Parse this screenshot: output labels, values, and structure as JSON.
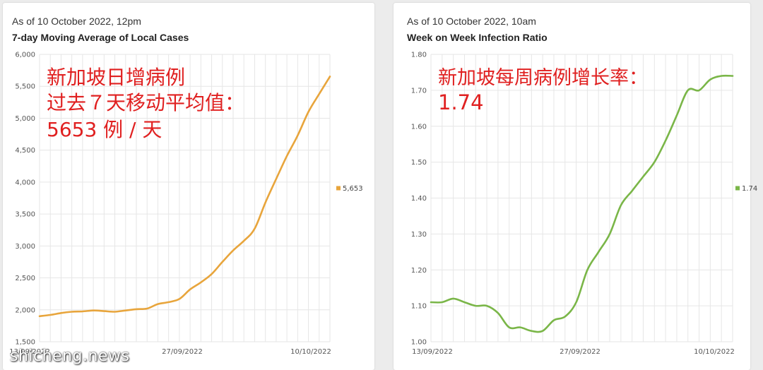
{
  "watermark": "shicheng.news",
  "chart_data": [
    {
      "type": "line",
      "subtitle": "As of 10 October 2022, 12pm",
      "title": "7-day Moving Average of Local Cases",
      "color": "#e8a53c",
      "ylim": [
        1500,
        6000
      ],
      "yticks": [
        "1,500",
        "2,000",
        "2,500",
        "3,000",
        "3,500",
        "4,000",
        "4,500",
        "5,000",
        "5,500",
        "6,000"
      ],
      "xtick_labels": [
        "13/09/2022",
        "27/09/2022",
        "10/10/2022"
      ],
      "legend": "5,653",
      "annotation": [
        "新加坡日增病例",
        "过去７天移动平均值：",
        "5653 例 / 天"
      ],
      "series": [
        {
          "x": [
            "13/09/2022",
            "14/09/2022",
            "15/09/2022",
            "16/09/2022",
            "17/09/2022",
            "18/09/2022",
            "19/09/2022",
            "20/09/2022",
            "21/09/2022",
            "22/09/2022",
            "23/09/2022",
            "24/09/2022",
            "25/09/2022",
            "26/09/2022",
            "27/09/2022",
            "28/09/2022",
            "29/09/2022",
            "30/09/2022",
            "01/10/2022",
            "02/10/2022",
            "03/10/2022",
            "04/10/2022",
            "05/10/2022",
            "06/10/2022",
            "07/10/2022",
            "08/10/2022",
            "09/10/2022",
            "10/10/2022"
          ],
          "values": [
            1900,
            1920,
            1950,
            1970,
            1975,
            1990,
            1980,
            1970,
            1990,
            2010,
            2020,
            2090,
            2120,
            2170,
            2320,
            2430,
            2560,
            2750,
            2930,
            3080,
            3270,
            3680,
            4050,
            4410,
            4730,
            5100,
            5380,
            5653
          ]
        }
      ]
    },
    {
      "type": "line",
      "subtitle": "As of 10 October 2022, 10am",
      "title": "Week on Week Infection Ratio",
      "color": "#7ab648",
      "ylim": [
        1.0,
        1.8
      ],
      "yticks": [
        "1.00",
        "1.10",
        "1.20",
        "1.30",
        "1.40",
        "1.50",
        "1.60",
        "1.70",
        "1.80"
      ],
      "xtick_labels": [
        "13/09/2022",
        "27/09/2022",
        "10/10/2022"
      ],
      "legend": "1.74",
      "annotation": [
        "新加坡每周病例增长率：",
        "1.74"
      ],
      "series": [
        {
          "x": [
            "13/09/2022",
            "14/09/2022",
            "15/09/2022",
            "16/09/2022",
            "17/09/2022",
            "18/09/2022",
            "19/09/2022",
            "20/09/2022",
            "21/09/2022",
            "22/09/2022",
            "23/09/2022",
            "24/09/2022",
            "25/09/2022",
            "26/09/2022",
            "27/09/2022",
            "28/09/2022",
            "29/09/2022",
            "30/09/2022",
            "01/10/2022",
            "02/10/2022",
            "03/10/2022",
            "04/10/2022",
            "05/10/2022",
            "06/10/2022",
            "07/10/2022",
            "08/10/2022",
            "09/10/2022",
            "10/10/2022"
          ],
          "values": [
            1.11,
            1.11,
            1.12,
            1.11,
            1.1,
            1.1,
            1.08,
            1.04,
            1.04,
            1.03,
            1.03,
            1.06,
            1.07,
            1.11,
            1.2,
            1.25,
            1.3,
            1.38,
            1.42,
            1.46,
            1.5,
            1.56,
            1.63,
            1.7,
            1.7,
            1.73,
            1.74,
            1.74
          ]
        }
      ]
    }
  ]
}
